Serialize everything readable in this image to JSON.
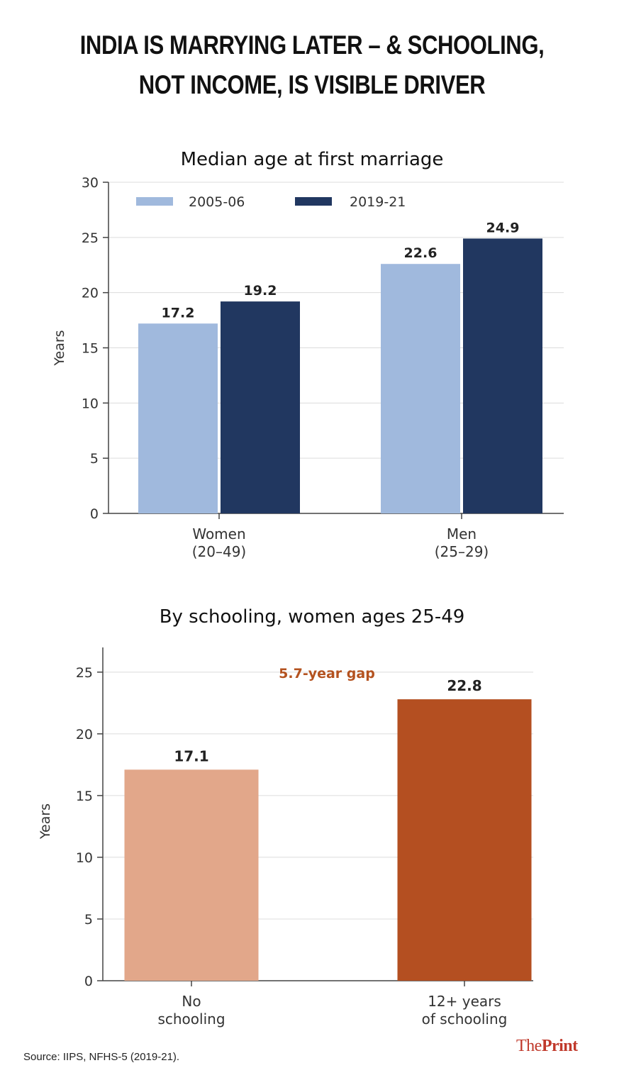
{
  "headline": {
    "line1": "INDIA IS MARRYING LATER – & SCHOOLING,",
    "line2": "NOT INCOME, IS VISIBLE DRIVER"
  },
  "chart_data": [
    {
      "type": "bar",
      "title": "Median age at first marriage",
      "ylabel": "Years",
      "ylim": [
        0,
        30
      ],
      "yticks": [
        0,
        5,
        10,
        15,
        20,
        25,
        30
      ],
      "grid": true,
      "legend_position": "top-left",
      "categories": [
        [
          "Women",
          "(20–49)"
        ],
        [
          "Men",
          "(25–29)"
        ]
      ],
      "series": [
        {
          "name": "2005-06",
          "values": [
            17.2,
            22.6
          ],
          "labels": [
            "17.2",
            "22.6"
          ],
          "color": "#a0b9dd"
        },
        {
          "name": "2019-21",
          "values": [
            19.2,
            24.9
          ],
          "labels": [
            "19.2",
            "24.9"
          ],
          "color": "#213760"
        }
      ]
    },
    {
      "type": "bar",
      "title": "By schooling, women ages 25-49",
      "ylabel": "Years",
      "ylim": [
        0,
        27
      ],
      "yticks": [
        0,
        5,
        10,
        15,
        20,
        25
      ],
      "grid": true,
      "categories": [
        [
          "No",
          "schooling"
        ],
        [
          "12+ years",
          "of schooling"
        ]
      ],
      "values": [
        17.1,
        22.8
      ],
      "labels": [
        "17.1",
        "22.8"
      ],
      "colors": [
        "#e2a78a",
        "#b44f21"
      ],
      "annotation": {
        "text": "5.7-year gap",
        "color": "#b4521f"
      }
    }
  ],
  "footer": {
    "source": "Source: IIPS, NFHS-5 (2019-21).",
    "logo_the": "The",
    "logo_print": "Print"
  }
}
